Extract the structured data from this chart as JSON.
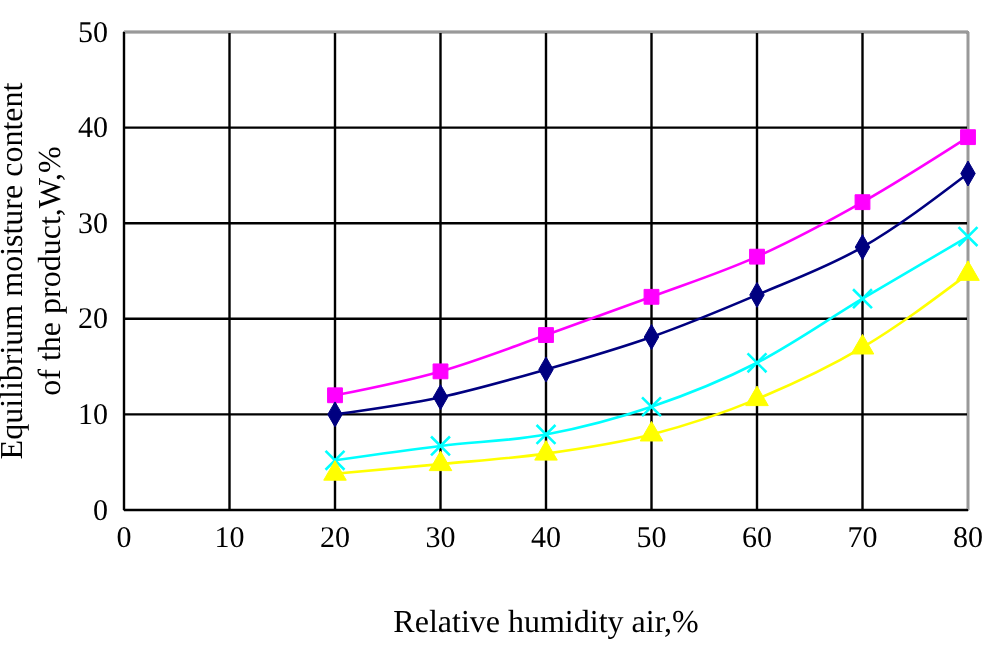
{
  "chart_data": {
    "type": "line",
    "xlabel": "Relative humidity air,%",
    "ylabel": "Equilibrium moisture content\nof the product,W,%",
    "x": [
      20,
      30,
      40,
      50,
      60,
      70,
      80
    ],
    "series": [
      {
        "color": "#ff00ff",
        "marker": "square",
        "values": [
          12,
          14.5,
          18.3,
          22.3,
          26.5,
          32.2,
          39
        ]
      },
      {
        "color": "#000080",
        "marker": "diamond",
        "values": [
          10,
          11.8,
          14.7,
          18.1,
          22.5,
          27.5,
          35.2
        ]
      },
      {
        "color": "#00ffff",
        "marker": "cross",
        "values": [
          5.2,
          6.7,
          7.9,
          10.8,
          15.4,
          22.1,
          28.6
        ]
      },
      {
        "color": "#ffff00",
        "marker": "triangle",
        "values": [
          3.8,
          4.8,
          5.9,
          7.9,
          11.6,
          17,
          24.7
        ]
      }
    ],
    "xlim": [
      0,
      80
    ],
    "xticks": [
      0,
      10,
      20,
      30,
      40,
      50,
      60,
      70,
      80
    ],
    "ylim": [
      0,
      50
    ],
    "yticks": [
      0,
      10,
      20,
      30,
      40,
      50
    ],
    "grid": true
  }
}
